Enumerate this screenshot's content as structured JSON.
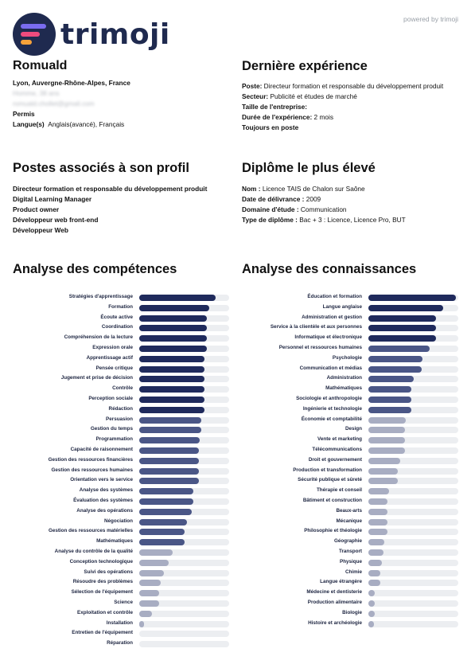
{
  "brand": {
    "name": "trimoji",
    "powered_by": "powered by trimoji",
    "logo_colors": [
      "#1f2a4f",
      "#7a6cf0",
      "#ee4b7e",
      "#f6a23a"
    ]
  },
  "profile": {
    "name": "Romuald",
    "location": "Lyon, Auvergne-Rhône-Alpes, France",
    "redacted_line_1": "Homme, 38 ans",
    "redacted_line_2": "romuald.chollet@gmail.com",
    "permit": "Permis",
    "languages_label": "Langue(s)",
    "languages": "Anglais(avancé),  Français"
  },
  "experience": {
    "title": "Dernière expérience",
    "post_label": "Poste:",
    "post": "Directeur formation et responsable du développement produit",
    "sector_label": "Secteur:",
    "sector": "Publicité et études de marché",
    "size_label": "Taille de l'entreprise:",
    "size": "",
    "duration_label": "Durée de l'expérience:",
    "duration": "2 mois",
    "current": "Toujours en poste"
  },
  "positions": {
    "title": "Postes associés à son profil",
    "items": [
      "Directeur formation et responsable du développement produit",
      "Digital Learning Manager",
      "Product owner",
      "Développeur web front-end",
      "Développeur Web"
    ]
  },
  "diploma": {
    "title": "Diplôme le plus élevé",
    "name_label": "Nom :",
    "name": "Licence TAIS de Chalon sur Saône",
    "date_label": "Date de délivrance :",
    "date": "2009",
    "field_label": "Domaine d'étude :",
    "field": "Communication",
    "type_label": "Type de diplôme :",
    "type": "Bac + 3 : Licence, Licence Pro, BUT"
  },
  "competences": {
    "title": "Analyse des compétences",
    "items": [
      {
        "label": "Stratégies d'apprentissage",
        "value": 0.85
      },
      {
        "label": "Formation",
        "value": 0.78
      },
      {
        "label": "Écoute active",
        "value": 0.75
      },
      {
        "label": "Coordination",
        "value": 0.75
      },
      {
        "label": "Compréhension de la lecture",
        "value": 0.75
      },
      {
        "label": "Expression orale",
        "value": 0.75
      },
      {
        "label": "Apprentissage actif",
        "value": 0.73
      },
      {
        "label": "Pensée critique",
        "value": 0.73
      },
      {
        "label": "Jugement et prise de décision",
        "value": 0.73
      },
      {
        "label": "Contrôle",
        "value": 0.73
      },
      {
        "label": "Perception sociale",
        "value": 0.73
      },
      {
        "label": "Rédaction",
        "value": 0.73
      },
      {
        "label": "Persuasion",
        "value": 0.69
      },
      {
        "label": "Gestion du temps",
        "value": 0.69
      },
      {
        "label": "Programmation",
        "value": 0.67
      },
      {
        "label": "Capacité de raisonnement",
        "value": 0.66
      },
      {
        "label": "Gestion des ressources financières",
        "value": 0.66
      },
      {
        "label": "Gestion des ressources humaines",
        "value": 0.66
      },
      {
        "label": "Orientation vers le service",
        "value": 0.66
      },
      {
        "label": "Analyse des systèmes",
        "value": 0.6
      },
      {
        "label": "Évaluation des systèmes",
        "value": 0.6
      },
      {
        "label": "Analyse des opérations",
        "value": 0.58
      },
      {
        "label": "Négociation",
        "value": 0.53
      },
      {
        "label": "Gestion des ressources matérielles",
        "value": 0.5
      },
      {
        "label": "Mathématiques",
        "value": 0.5
      },
      {
        "label": "Analyse du contrôle de la qualité",
        "value": 0.37
      },
      {
        "label": "Conception technologique",
        "value": 0.33
      },
      {
        "label": "Suivi des opérations",
        "value": 0.27
      },
      {
        "label": "Résoudre des problèmes",
        "value": 0.24
      },
      {
        "label": "Sélection de l'équipement",
        "value": 0.22
      },
      {
        "label": "Science",
        "value": 0.22
      },
      {
        "label": "Exploitation et contrôle",
        "value": 0.14
      },
      {
        "label": "Installation",
        "value": 0.05
      },
      {
        "label": "Entretien de l'équipement",
        "value": 0.0
      },
      {
        "label": "Réparation",
        "value": 0.0
      }
    ]
  },
  "connaissances": {
    "title": "Analyse des connaissances",
    "items": [
      {
        "label": "Éducation et formation",
        "value": 0.97
      },
      {
        "label": "Langue anglaise",
        "value": 0.83
      },
      {
        "label": "Administration et gestion",
        "value": 0.75
      },
      {
        "label": "Service à la clientèle et aux personnes",
        "value": 0.75
      },
      {
        "label": "Informatique et électronique",
        "value": 0.75
      },
      {
        "label": "Personnel et ressources humaines",
        "value": 0.68
      },
      {
        "label": "Psychologie",
        "value": 0.6
      },
      {
        "label": "Communication et médias",
        "value": 0.59
      },
      {
        "label": "Administration",
        "value": 0.5
      },
      {
        "label": "Mathématiques",
        "value": 0.48
      },
      {
        "label": "Sociologie et anthropologie",
        "value": 0.48
      },
      {
        "label": "Ingénierie et technologie",
        "value": 0.48
      },
      {
        "label": "Économie et comptabilité",
        "value": 0.42
      },
      {
        "label": "Design",
        "value": 0.41
      },
      {
        "label": "Vente et marketing",
        "value": 0.41
      },
      {
        "label": "Télécommunications",
        "value": 0.41
      },
      {
        "label": "Droit et gouvernement",
        "value": 0.35
      },
      {
        "label": "Production et transformation",
        "value": 0.33
      },
      {
        "label": "Sécurité publique et sûreté",
        "value": 0.33
      },
      {
        "label": "Thérapie et conseil",
        "value": 0.23
      },
      {
        "label": "Bâtiment et construction",
        "value": 0.21
      },
      {
        "label": "Beaux-arts",
        "value": 0.21
      },
      {
        "label": "Mécanique",
        "value": 0.21
      },
      {
        "label": "Philosophie et théologie",
        "value": 0.21
      },
      {
        "label": "Géographie",
        "value": 0.18
      },
      {
        "label": "Transport",
        "value": 0.17
      },
      {
        "label": "Physique",
        "value": 0.15
      },
      {
        "label": "Chimie",
        "value": 0.13
      },
      {
        "label": "Langue étrangère",
        "value": 0.13
      },
      {
        "label": "Médecine et dentisterie",
        "value": 0.07
      },
      {
        "label": "Production alimentaire",
        "value": 0.07
      },
      {
        "label": "Biologie",
        "value": 0.07
      },
      {
        "label": "Histoire et archéologie",
        "value": 0.06
      }
    ]
  },
  "bar_colors": {
    "track": "#eceef1",
    "high": "#1f2a5c",
    "mid": "#4a5686",
    "low": "#a8adc2"
  }
}
